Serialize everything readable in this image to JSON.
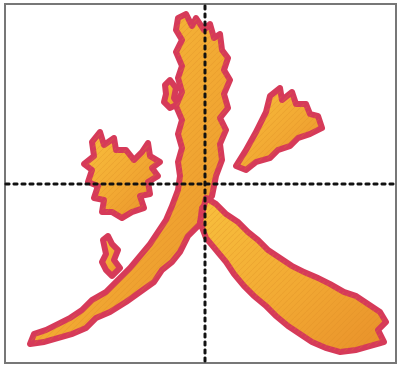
{
  "colors": {
    "frame": "#777777",
    "guide": "#111111",
    "outline": "#d63a59",
    "fill_light": "#f8b93a",
    "fill_dark": "#e9952a"
  },
  "icons": {
    "character": "fire-character-drawing"
  }
}
